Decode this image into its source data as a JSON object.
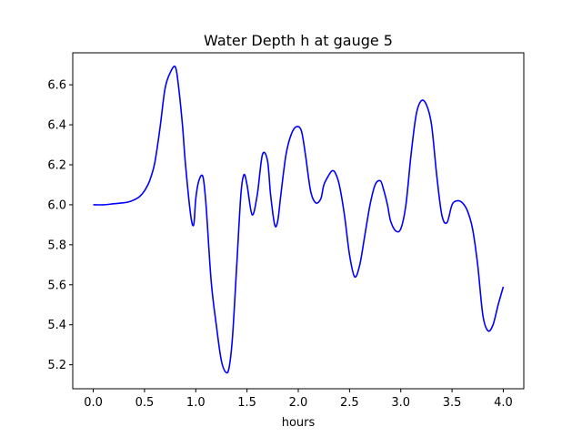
{
  "chart_data": {
    "type": "line",
    "title": "Water Depth h at gauge 5",
    "xlabel": "hours",
    "ylabel": "",
    "xlim": [
      -0.2,
      4.2
    ],
    "ylim": [
      5.08,
      6.76
    ],
    "xticks": [
      0.0,
      0.5,
      1.0,
      1.5,
      2.0,
      2.5,
      3.0,
      3.5,
      4.0
    ],
    "xtick_labels": [
      "0.0",
      "0.5",
      "1.0",
      "1.5",
      "2.0",
      "2.5",
      "3.0",
      "3.5",
      "4.0"
    ],
    "yticks": [
      5.2,
      5.4,
      5.6,
      5.8,
      6.0,
      6.2,
      6.4,
      6.6
    ],
    "ytick_labels": [
      "5.2",
      "5.4",
      "5.6",
      "5.8",
      "6.0",
      "6.2",
      "6.4",
      "6.6"
    ],
    "grid": false,
    "series": [
      {
        "color": "#0000ff",
        "x": [
          0.0,
          0.1,
          0.2,
          0.3,
          0.35,
          0.4,
          0.45,
          0.5,
          0.55,
          0.6,
          0.65,
          0.7,
          0.75,
          0.8,
          0.83,
          0.87,
          0.9,
          0.95,
          0.98,
          1.0,
          1.03,
          1.07,
          1.1,
          1.15,
          1.2,
          1.25,
          1.3,
          1.33,
          1.36,
          1.4,
          1.44,
          1.47,
          1.5,
          1.55,
          1.6,
          1.65,
          1.7,
          1.73,
          1.77,
          1.8,
          1.83,
          1.88,
          1.93,
          1.98,
          2.03,
          2.07,
          2.12,
          2.17,
          2.22,
          2.25,
          2.3,
          2.33,
          2.36,
          2.4,
          2.45,
          2.5,
          2.55,
          2.6,
          2.65,
          2.7,
          2.75,
          2.8,
          2.83,
          2.87,
          2.9,
          2.95,
          3.0,
          3.05,
          3.1,
          3.15,
          3.2,
          3.25,
          3.3,
          3.35,
          3.4,
          3.45,
          3.5,
          3.55,
          3.6,
          3.65,
          3.7,
          3.75,
          3.8,
          3.85,
          3.9,
          3.95,
          4.0
        ],
        "y": [
          6.0,
          6.0,
          6.005,
          6.01,
          6.015,
          6.025,
          6.04,
          6.07,
          6.12,
          6.21,
          6.38,
          6.58,
          6.66,
          6.69,
          6.6,
          6.4,
          6.2,
          5.95,
          5.9,
          6.03,
          6.12,
          6.14,
          6.0,
          5.62,
          5.4,
          5.22,
          5.16,
          5.2,
          5.35,
          5.7,
          6.05,
          6.15,
          6.1,
          5.95,
          6.05,
          6.25,
          6.22,
          6.05,
          5.9,
          5.92,
          6.05,
          6.25,
          6.35,
          6.39,
          6.37,
          6.25,
          6.07,
          6.01,
          6.03,
          6.1,
          6.15,
          6.17,
          6.16,
          6.1,
          5.95,
          5.75,
          5.64,
          5.7,
          5.85,
          6.0,
          6.1,
          6.12,
          6.08,
          6.0,
          5.92,
          5.87,
          5.88,
          6.0,
          6.25,
          6.45,
          6.52,
          6.5,
          6.4,
          6.15,
          5.95,
          5.91,
          6.0,
          6.02,
          6.01,
          5.97,
          5.88,
          5.7,
          5.45,
          5.37,
          5.4,
          5.5,
          5.59
        ]
      }
    ]
  }
}
